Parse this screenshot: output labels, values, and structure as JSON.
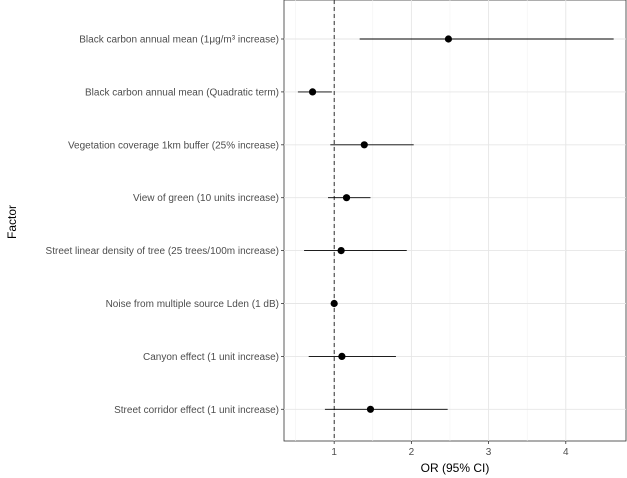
{
  "chart_data": {
    "type": "forest",
    "xlabel": "OR (95% CI)",
    "ylabel": "Factor",
    "xlim": [
      0.35,
      4.78
    ],
    "xticks": [
      "1",
      "2",
      "3",
      "4"
    ],
    "xtick_values": [
      1,
      2,
      3,
      4
    ],
    "reference_line": 1,
    "grid": true,
    "rows": [
      {
        "label": "Black carbon annual mean (1μg/m³ increase)",
        "or": 2.48,
        "lower": 1.33,
        "upper": 4.62
      },
      {
        "label": "Black carbon annual mean (Quadratic term)",
        "or": 0.72,
        "lower": 0.53,
        "upper": 0.97
      },
      {
        "label": "Vegetation coverage 1km buffer (25% increase)",
        "or": 1.39,
        "lower": 0.95,
        "upper": 2.03
      },
      {
        "label": "View of green (10 units increase)",
        "or": 1.16,
        "lower": 0.92,
        "upper": 1.47
      },
      {
        "label": "Street linear density of tree (25 trees/100m increase)",
        "or": 1.09,
        "lower": 0.61,
        "upper": 1.94
      },
      {
        "label": "Noise from multiple source Lden (1 dB)",
        "or": 1.0,
        "lower": 0.99,
        "upper": 1.01
      },
      {
        "label": "Canyon effect (1 unit increase)",
        "or": 1.1,
        "lower": 0.67,
        "upper": 1.8
      },
      {
        "label": "Street corridor effect (1 unit increase)",
        "or": 1.47,
        "lower": 0.88,
        "upper": 2.47
      }
    ]
  }
}
